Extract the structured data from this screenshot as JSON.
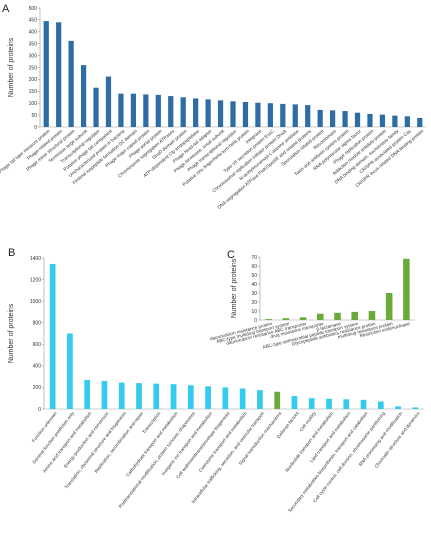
{
  "chart_data": [
    {
      "panel": "A",
      "type": "bar",
      "ylabel": "Number of proteins",
      "ylim": [
        0,
        500
      ],
      "yticks": [
        0,
        50,
        100,
        150,
        200,
        250,
        300,
        350,
        400,
        450,
        500
      ],
      "bar_color": "#2e6da4",
      "categories": [
        "Phage tail tape measure protein",
        "Phage-related protein",
        "Phage minor structural protein",
        "Terminase large subunit",
        "Transcriptional regulator",
        "Putative phage tail component",
        "Uncharacterized protein in bacteria",
        "Fimbrial isopeptide formation D2 domain",
        "Phage major capsid protein",
        "Phage portal protein",
        "Chromosome segregation ATPases",
        "DnaD domain protein",
        "ATP-dependent Clp endopeptidase",
        "Phage head-tail adaptor",
        "Phage terminase, small subunit",
        "Phage transcriptional regulator",
        "Putative zinc finger/helix-turn-helix protein",
        "Integrase",
        "Type VII secretion protein EssC",
        "Chromosomal replication initiator protein DnaA",
        "N-acetylmuramoyl-L-alanine amidase",
        "DNA segregation ATPase FtsK/SpoIIIE and related proteins",
        "Sporulation related protein",
        "Recombinase",
        "Toxin and antitoxin system protein",
        "RNA polymerase sigma factor",
        "Phage replication protein",
        "Addiction module antidote protein",
        "DNA binding domain, excisionase family",
        "CRISPR-associated protein Cas",
        "CRISPR locus-related DNA binding protein"
      ],
      "values": [
        445,
        440,
        362,
        260,
        165,
        212,
        140,
        140,
        137,
        135,
        130,
        125,
        120,
        116,
        112,
        108,
        105,
        102,
        100,
        97,
        95,
        92,
        72,
        70,
        67,
        60,
        55,
        52,
        48,
        45,
        38
      ]
    },
    {
      "panel": "B",
      "type": "bar",
      "ylabel": "Number of proteins",
      "ylim": [
        0,
        1400
      ],
      "yticks": [
        0,
        200,
        400,
        600,
        800,
        1000,
        1200,
        1400
      ],
      "bar_color": "#33ccee",
      "highlight_color": "#6aaa3a",
      "highlight_index": 13,
      "categories": [
        "Function unknown",
        "General function prediction only",
        "Amino acid transport and metabolism",
        "Energy production and conversion",
        "Translation, ribosomal structure and biogenesis",
        "Replication, recombination and repair",
        "Transcription",
        "Carbohydrate transport and metabolism",
        "Posttranslational modification, protein turnover, chaperones",
        "Inorganic ion transport and metabolism",
        "Cell wall/membrane/envelope biogenesis",
        "Coenzyme transport and metabolism",
        "Intracellular trafficking, secretion, and vesicular transport",
        "Signal transduction mechanisms",
        "Defense factors",
        "Cell motility",
        "Nucleotide transport and metabolism",
        "Lipid transport and metabolism",
        "Secondary metabolites biosynthesis, transport and catabolism",
        "Cell cycle control, cell division, chromosome partitioning",
        "RNA processing and modification",
        "Chromatin structure and dynamics"
      ],
      "values": [
        1345,
        700,
        270,
        260,
        245,
        240,
        235,
        230,
        220,
        210,
        200,
        190,
        175,
        160,
        120,
        100,
        95,
        90,
        85,
        70,
        25,
        15
      ]
    },
    {
      "panel": "C",
      "type": "bar",
      "ylabel": "Number of proteins",
      "ylim": [
        0,
        70
      ],
      "yticks": [
        0,
        10,
        20,
        30,
        40,
        50,
        60,
        70
      ],
      "bar_color": "#6aaa3a",
      "categories": [
        "daunorubicin resistance protein",
        "ABC-type multidrug transport system",
        "daunorubicin resistance ABC transporter",
        "drug resistance transporter",
        "β-lactamase",
        "ABC-type antimicrobial peptide transport system",
        "Glycopeptide antibiotics resistance protein",
        "multidrug resistance protein",
        "Restriction endonuclease"
      ],
      "values": [
        1,
        2,
        3,
        7,
        8,
        9,
        10,
        30,
        68
      ]
    }
  ]
}
